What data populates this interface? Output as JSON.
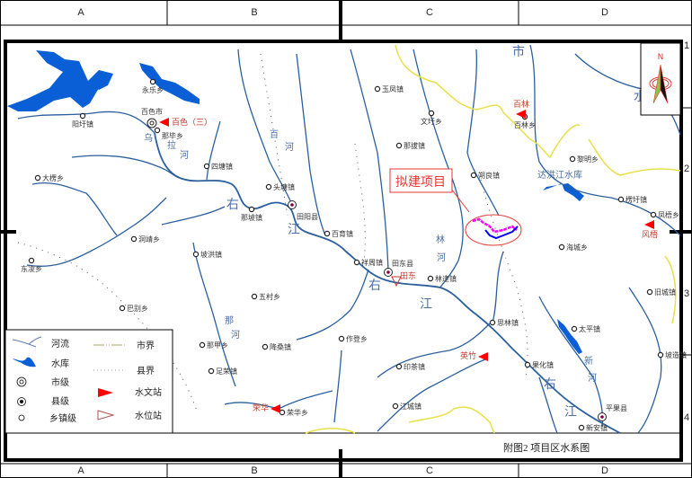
{
  "map": {
    "title": "附图2 项目区水系图",
    "project_label": "拟建项目",
    "north_label": "N",
    "grid_columns": [
      "A",
      "B",
      "C",
      "D"
    ],
    "grid_rows": [
      "1",
      "2",
      "3",
      "4"
    ],
    "colors": {
      "river": "#2b5f9e",
      "reservoir": "#0a5fd6",
      "city_boundary": "#e8e04a",
      "project_outline": "#e53935",
      "project_a": "#ff00ff",
      "project_b": "#0000ff",
      "hydro_station": "#ff0000",
      "level_station": "#b05050"
    },
    "places": [
      {
        "name": "百色市",
        "level": "city"
      },
      {
        "name": "永乐乡",
        "level": "town"
      },
      {
        "name": "阳圩镇",
        "level": "town"
      },
      {
        "name": "那毕乡",
        "level": "town"
      },
      {
        "name": "大楞乡",
        "level": "town"
      },
      {
        "name": "四塘镇",
        "level": "town"
      },
      {
        "name": "头塘镇",
        "level": "town"
      },
      {
        "name": "田阳县",
        "level": "county"
      },
      {
        "name": "那坡镇",
        "level": "town"
      },
      {
        "name": "百育镇",
        "level": "town"
      },
      {
        "name": "东凌乡",
        "level": "town"
      },
      {
        "name": "洞靖乡",
        "level": "town"
      },
      {
        "name": "坡洪镇",
        "level": "town"
      },
      {
        "name": "五村乡",
        "level": "town"
      },
      {
        "name": "巴别乡",
        "level": "town"
      },
      {
        "name": "玉凤镇",
        "level": "town"
      },
      {
        "name": "文圩乡",
        "level": "town"
      },
      {
        "name": "那拔镇",
        "level": "town"
      },
      {
        "name": "朔良镇",
        "level": "town"
      },
      {
        "name": "百林乡",
        "level": "town"
      },
      {
        "name": "黎明乡",
        "level": "town"
      },
      {
        "name": "楞圩镇",
        "level": "town"
      },
      {
        "name": "凤梧乡",
        "level": "town"
      },
      {
        "name": "海城乡",
        "level": "town"
      },
      {
        "name": "祥周镇",
        "level": "town"
      },
      {
        "name": "田东县",
        "level": "county"
      },
      {
        "name": "林逢镇",
        "level": "town"
      },
      {
        "name": "旧城镇",
        "level": "town"
      },
      {
        "name": "思林镇",
        "level": "town"
      },
      {
        "name": "太平镇",
        "level": "town"
      },
      {
        "name": "坡造镇",
        "level": "town"
      },
      {
        "name": "果化镇",
        "level": "town"
      },
      {
        "name": "印茶镇",
        "level": "town"
      },
      {
        "name": "作登乡",
        "level": "town"
      },
      {
        "name": "降桑镇",
        "level": "town"
      },
      {
        "name": "那甲乡",
        "level": "town"
      },
      {
        "name": "足荣镇",
        "level": "town"
      },
      {
        "name": "江城镇",
        "level": "town"
      },
      {
        "name": "平果县",
        "level": "county"
      },
      {
        "name": "新安镇",
        "level": "town"
      },
      {
        "name": "荣华乡",
        "level": "town"
      }
    ],
    "stations": [
      {
        "name": "百色（三）",
        "type": "hydrological"
      },
      {
        "name": "百林",
        "type": "hydrological"
      },
      {
        "name": "风梧",
        "type": "hydrological"
      },
      {
        "name": "荣华",
        "type": "hydrological"
      },
      {
        "name": "英竹",
        "type": "hydrological"
      },
      {
        "name": "田东",
        "type": "water-level"
      }
    ],
    "water_labels": [
      "右",
      "江",
      "右",
      "江",
      "右",
      "江",
      "市",
      "水",
      "达洪江水库",
      "乌",
      "拉",
      "河",
      "百",
      "河",
      "那",
      "河",
      "新",
      "河",
      "林",
      "河"
    ]
  },
  "legend": {
    "items": [
      {
        "label": "河流",
        "symbol": "river"
      },
      {
        "label": "水库",
        "symbol": "reservoir"
      },
      {
        "label": "市级",
        "symbol": "city"
      },
      {
        "label": "县级",
        "symbol": "county"
      },
      {
        "label": "乡镇级",
        "symbol": "town"
      },
      {
        "label": "市界",
        "symbol": "city-boundary"
      },
      {
        "label": "县界",
        "symbol": "county-boundary"
      },
      {
        "label": "水文站",
        "symbol": "hydrological-station"
      },
      {
        "label": "水位站",
        "symbol": "water-level-station"
      }
    ]
  }
}
